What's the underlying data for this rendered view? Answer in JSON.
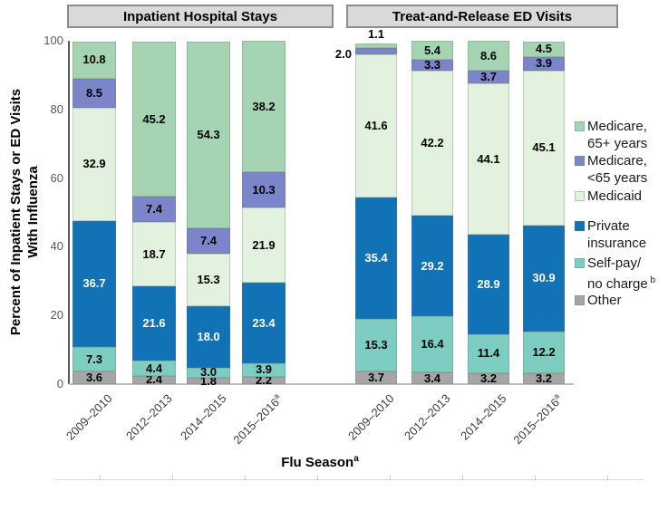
{
  "figure": {
    "ylabel_line1": "Percent of Inpatient Stays or ED Visits",
    "ylabel_line2": "With Influenza",
    "xlabel": "Flu Season",
    "xlabel_sup": "a"
  },
  "chart_data": {
    "type": "bar",
    "subtype": "stacked",
    "ylim": [
      0,
      100
    ],
    "y_ticks": [
      0,
      20,
      40,
      60,
      80,
      100
    ],
    "grid": false,
    "legend_position": "right",
    "categories": [
      {
        "label": "2009–2010",
        "sup": ""
      },
      {
        "label": "2012–2013",
        "sup": ""
      },
      {
        "label": "2014–2015",
        "sup": ""
      },
      {
        "label": "2015–2016",
        "sup": "a"
      }
    ],
    "series_order_bottom_to_top": [
      "Other",
      "Self-pay/no charge",
      "Private insurance",
      "Medicaid",
      "Medicare, <65 years",
      "Medicare, 65+ years"
    ],
    "colors": {
      "series": [
        "#A6A6A6",
        "#7DCDC3",
        "#1272B6",
        "#E3F2DF",
        "#7B85C9",
        "#A5D4B2"
      ],
      "label_on_private": "#FFFFFF",
      "label_default": "#000000",
      "panel_title_bg": "#D9D9D9",
      "panel_title_border": "#8C8C8C"
    },
    "panels": [
      {
        "title": "Inpatient Hospital Stays",
        "bars": [
          [
            3.6,
            7.3,
            36.7,
            32.9,
            8.5,
            10.8
          ],
          [
            2.4,
            4.4,
            21.6,
            18.7,
            7.4,
            45.2
          ],
          [
            1.8,
            3.0,
            18.0,
            15.3,
            7.4,
            54.3
          ],
          [
            2.2,
            3.9,
            23.4,
            21.9,
            10.3,
            38.2
          ]
        ],
        "label_overrides": {}
      },
      {
        "title": "Treat-and-Release ED Visits",
        "bars": [
          [
            3.7,
            15.3,
            35.4,
            41.6,
            2.0,
            1.1
          ],
          [
            3.4,
            16.4,
            29.2,
            42.2,
            3.3,
            5.4
          ],
          [
            3.2,
            11.4,
            28.9,
            44.1,
            3.7,
            8.6
          ],
          [
            3.2,
            12.2,
            30.9,
            45.1,
            3.9,
            4.5
          ]
        ],
        "label_overrides": {
          "0": {
            "4": "left",
            "5": "above"
          }
        }
      }
    ],
    "legend": [
      {
        "key": "medicare-65plus",
        "lines": [
          "Medicare,",
          "65+ years"
        ],
        "sup": "",
        "color_index": 5
      },
      {
        "key": "medicare-under65",
        "lines": [
          "Medicare,",
          "<65 years"
        ],
        "sup": "",
        "color_index": 4
      },
      {
        "key": "medicaid",
        "lines": [
          "Medicaid"
        ],
        "sup": "",
        "color_index": 3
      },
      {
        "key": "private-insurance",
        "lines": [
          "Private",
          "insurance"
        ],
        "sup": "",
        "color_index": 2
      },
      {
        "key": "self-pay",
        "lines": [
          "Self-pay/",
          "no charge"
        ],
        "sup": "b",
        "color_index": 1
      },
      {
        "key": "other",
        "lines": [
          "Other"
        ],
        "sup": "",
        "color_index": 0
      }
    ]
  }
}
